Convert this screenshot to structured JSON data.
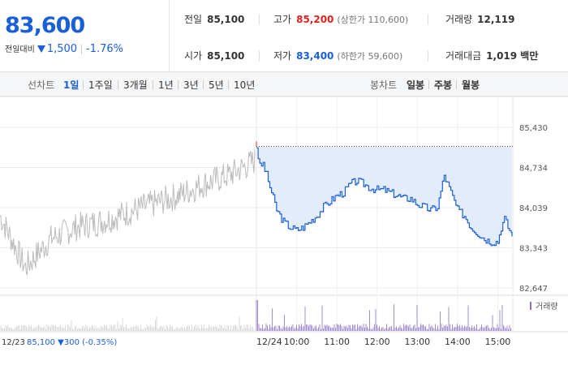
{
  "quote": {
    "price": "83,600",
    "change_label": "전일대비",
    "change": "1,500",
    "change_rate": "-1.76%",
    "down_color": "#1a5fd8",
    "up_color": "#e02020"
  },
  "stats": {
    "prev_close_label": "전일",
    "prev_close": "85,100",
    "high_label": "고가",
    "high": "85,200",
    "upper_limit": "(상한가 110,600)",
    "volume_label": "거래량",
    "volume": "12,119",
    "open_label": "시가",
    "open": "85,100",
    "low_label": "저가",
    "low": "83,400",
    "lower_limit": "(하한가 59,600)",
    "amount_label": "거래대금",
    "amount": "1,019 백만"
  },
  "tabs": {
    "line_chart_label": "선차트",
    "line_periods": [
      "1일",
      "1주일",
      "3개월",
      "1년",
      "3년",
      "5년",
      "10년"
    ],
    "active_period": "1일",
    "candle_chart_label": "봉차트",
    "candle_periods": [
      "일봉",
      "주봉",
      "월봉"
    ]
  },
  "chart_data": {
    "type": "line",
    "y_ticks": [
      85430,
      84734,
      84039,
      83343,
      82647
    ],
    "y_tick_labels": [
      "85,430",
      "84,734",
      "84,039",
      "83,343",
      "82,647"
    ],
    "ylim": [
      82647,
      85430
    ],
    "reference_price": 85100,
    "prev_day": {
      "date": "12/23",
      "summary": "85,100 ▼300 (-0.35%)",
      "price": "85,100",
      "change": "▼300",
      "rate": "(-0.35%)",
      "x": [
        0,
        1,
        2,
        3,
        4,
        5,
        6,
        7,
        8,
        9,
        10
      ],
      "y": [
        83900,
        83000,
        83500,
        83700,
        83800,
        83950,
        84100,
        84250,
        84450,
        84600,
        84850
      ],
      "color": "#bbbbbb"
    },
    "today": {
      "date": "12/24",
      "x_tick_labels": [
        "10:00",
        "11:00",
        "12:00",
        "13:00",
        "14:00",
        "15:00"
      ],
      "x": [
        "09:00",
        "09:05",
        "09:10",
        "09:20",
        "09:30",
        "09:40",
        "09:50",
        "10:00",
        "10:10",
        "10:20",
        "10:30",
        "10:40",
        "10:50",
        "11:00",
        "11:10",
        "11:20",
        "11:30",
        "11:40",
        "11:50",
        "12:00",
        "12:10",
        "12:20",
        "12:30",
        "12:40",
        "12:50",
        "13:00",
        "13:10",
        "13:20",
        "13:30",
        "13:40",
        "13:50",
        "14:00",
        "14:10",
        "14:20",
        "14:30",
        "14:40",
        "14:50",
        "15:00",
        "15:05",
        "15:10",
        "15:15",
        "15:20"
      ],
      "y": [
        85100,
        84750,
        84800,
        84400,
        84000,
        83800,
        83700,
        83650,
        83700,
        83800,
        83900,
        84050,
        84150,
        84250,
        84300,
        84450,
        84500,
        84450,
        84380,
        84350,
        84350,
        84300,
        84250,
        84200,
        84200,
        84100,
        84050,
        84000,
        84050,
        84600,
        84300,
        84000,
        83900,
        83700,
        83600,
        83500,
        83450,
        83450,
        83700,
        83850,
        83700,
        83600
      ],
      "color": "#1a5fd8",
      "fill_color": "#e3ecfa"
    },
    "volume": {
      "legend": "거래량",
      "color": "#8a6fbf"
    },
    "grid": true
  }
}
